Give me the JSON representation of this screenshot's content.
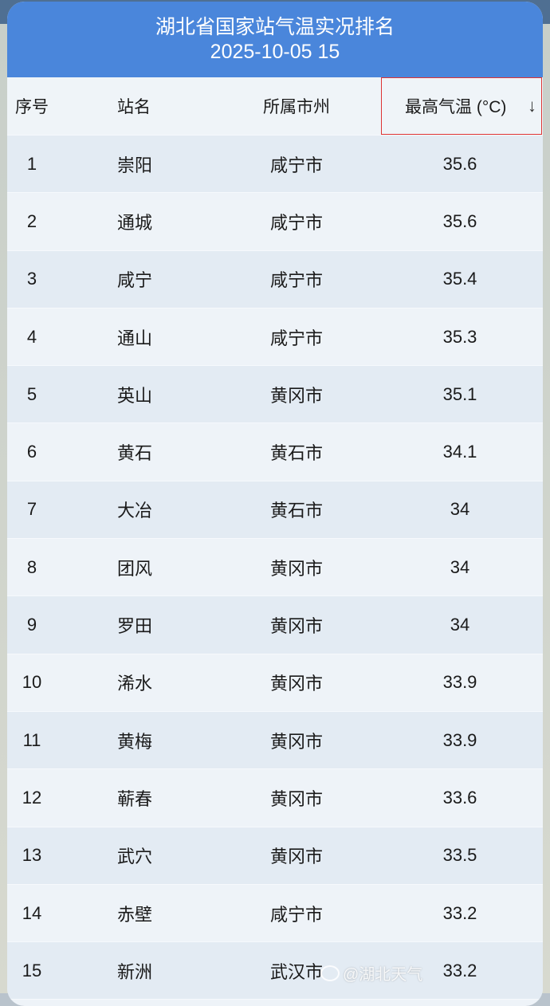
{
  "header": {
    "title": "湖北省国家站气温实况排名",
    "datetime": "2025-10-05 15"
  },
  "columns": {
    "index": "序号",
    "station": "站名",
    "city": "所属市州",
    "temp": "最高气温 (°C)",
    "sort_icon": "↓"
  },
  "sort": {
    "column": "temp",
    "direction": "descending"
  },
  "rows": [
    {
      "index": "1",
      "station": "崇阳",
      "city": "咸宁市",
      "temp": "35.6"
    },
    {
      "index": "2",
      "station": "通城",
      "city": "咸宁市",
      "temp": "35.6"
    },
    {
      "index": "3",
      "station": "咸宁",
      "city": "咸宁市",
      "temp": "35.4"
    },
    {
      "index": "4",
      "station": "通山",
      "city": "咸宁市",
      "temp": "35.3"
    },
    {
      "index": "5",
      "station": "英山",
      "city": "黄冈市",
      "temp": "35.1"
    },
    {
      "index": "6",
      "station": "黄石",
      "city": "黄石市",
      "temp": "34.1"
    },
    {
      "index": "7",
      "station": "大冶",
      "city": "黄石市",
      "temp": "34"
    },
    {
      "index": "8",
      "station": "团风",
      "city": "黄冈市",
      "temp": "34"
    },
    {
      "index": "9",
      "station": "罗田",
      "city": "黄冈市",
      "temp": "34"
    },
    {
      "index": "10",
      "station": "浠水",
      "city": "黄冈市",
      "temp": "33.9"
    },
    {
      "index": "11",
      "station": "黄梅",
      "city": "黄冈市",
      "temp": "33.9"
    },
    {
      "index": "12",
      "station": "蕲春",
      "city": "黄冈市",
      "temp": "33.6"
    },
    {
      "index": "13",
      "station": "武穴",
      "city": "黄冈市",
      "temp": "33.5"
    },
    {
      "index": "14",
      "station": "赤壁",
      "city": "咸宁市",
      "temp": "33.2"
    },
    {
      "index": "15",
      "station": "新洲",
      "city": "武汉市",
      "temp": "33.2"
    }
  ],
  "watermark": "@湖北天气",
  "colors": {
    "header_bg": "#4a86db",
    "sort_highlight": "#dd3333"
  }
}
